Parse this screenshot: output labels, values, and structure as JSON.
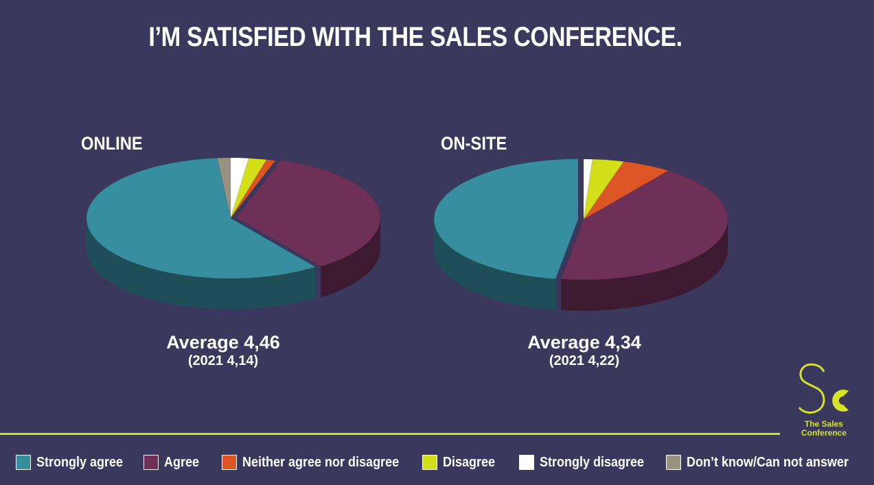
{
  "title": "I’M SATISFIED WITH THE SALES CONFERENCE.",
  "chart_data": [
    {
      "type": "pie",
      "label": "ONLINE",
      "average_text": "Average 4,46",
      "previous_text": "(2021 4,14)",
      "categories": [
        "Strongly agree",
        "Agree",
        "Neither agree nor disagree",
        "Disagree",
        "Strongly disagree",
        "Don’t know/Can not answer"
      ],
      "values": [
        58.5,
        35,
        1,
        2,
        2,
        1.5
      ]
    },
    {
      "type": "pie",
      "label": "ON-SITE",
      "average_text": "Average 4,34",
      "previous_text": "(2021 4,22)",
      "categories": [
        "Strongly agree",
        "Agree",
        "Neither agree nor disagree",
        "Disagree",
        "Strongly disagree",
        "Don’t know/Can not answer"
      ],
      "values": [
        47.5,
        42.5,
        5.5,
        3.5,
        1,
        0
      ]
    }
  ],
  "legend": [
    {
      "label": "Strongly agree",
      "color": "#368e9f"
    },
    {
      "label": "Agree",
      "color": "#6f3058"
    },
    {
      "label": "Neither agree nor disagree",
      "color": "#dd5524"
    },
    {
      "label": "Disagree",
      "color": "#d3e019"
    },
    {
      "label": "Strongly disagree",
      "color": "#ffffff"
    },
    {
      "label": "Don’t know/Can not answer",
      "color": "#9a9280"
    }
  ],
  "logo": {
    "text_line1": "The Sales",
    "text_line2": "Conference",
    "color": "#d6e326"
  }
}
